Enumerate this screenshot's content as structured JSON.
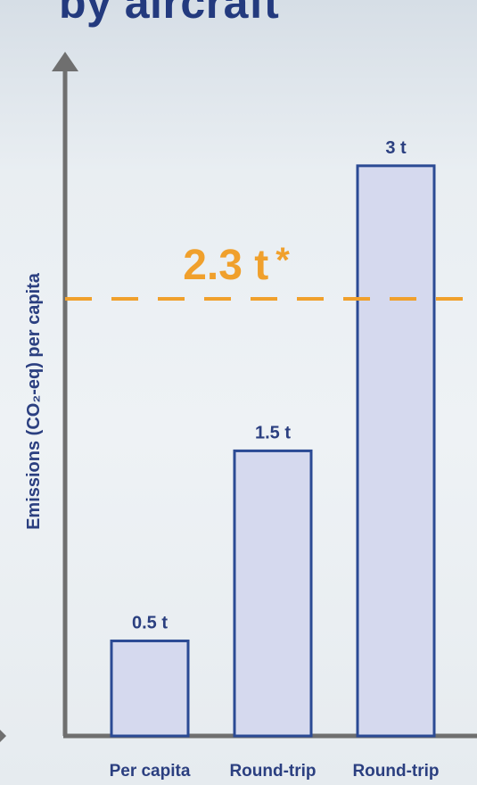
{
  "title_fragment": "by aircraft",
  "chart_data": {
    "type": "bar",
    "ylabel": "Emissions (CO₂-eq) per capita",
    "xlabel": "",
    "categories": [
      "Per capita",
      "Round-trip",
      "Round-trip"
    ],
    "values": [
      0.5,
      1.5,
      3
    ],
    "value_labels": [
      "0.5 t",
      "1.5 t",
      "3 t"
    ],
    "ylim": [
      0,
      3.6
    ],
    "grid": false,
    "reference_line": {
      "value": 2.3,
      "label": "2.3 t",
      "marker": "*",
      "style": "dashed",
      "color": "#f0a02c"
    },
    "colors": {
      "bar_fill": "#d5d9ee",
      "bar_stroke": "#2b4a94",
      "axis": "#6f6f6f",
      "text": "#2b3f80"
    }
  }
}
